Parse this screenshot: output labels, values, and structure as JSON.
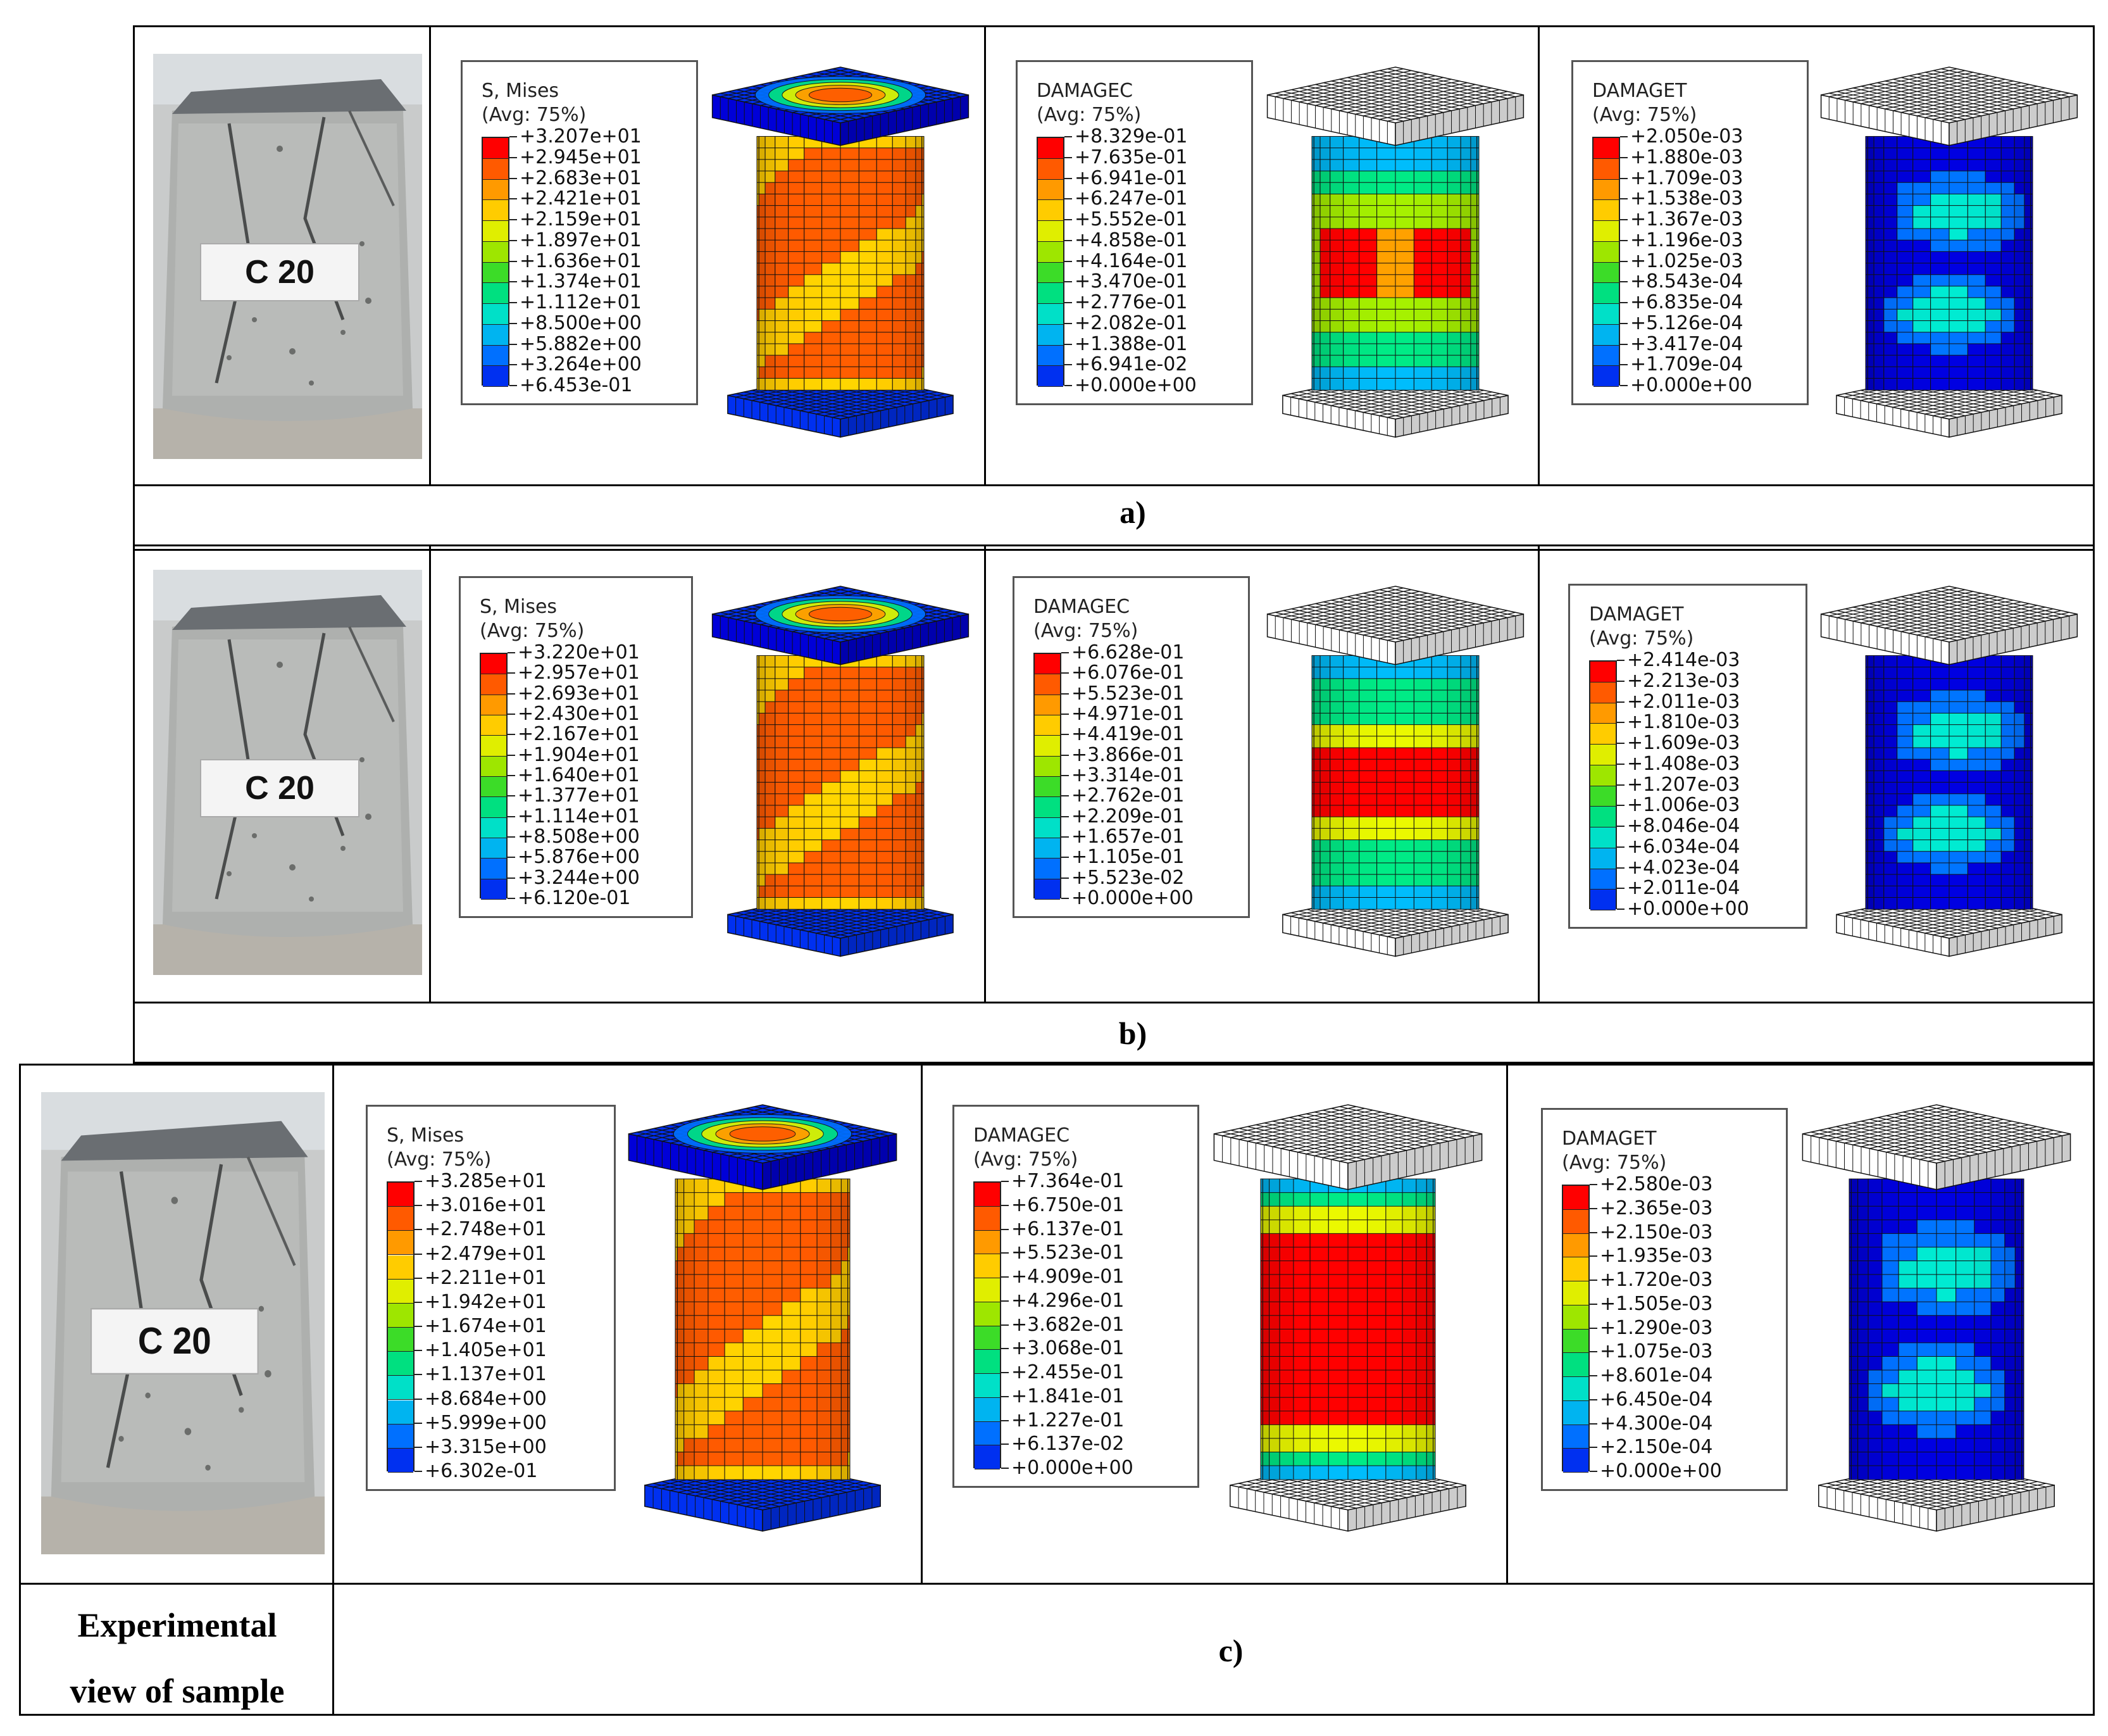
{
  "rows": [
    {
      "id": "a",
      "caption": "a)",
      "specimen_label": "C 20",
      "legends": [
        {
          "title": "S, Mises",
          "avg": "(Avg: 75%)",
          "values": [
            "+3.207e+01",
            "+2.945e+01",
            "+2.683e+01",
            "+2.421e+01",
            "+2.159e+01",
            "+1.897e+01",
            "+1.636e+01",
            "+1.374e+01",
            "+1.112e+01",
            "+8.500e+00",
            "+5.882e+00",
            "+3.264e+00",
            "+6.453e-01"
          ]
        },
        {
          "title": "DAMAGEC",
          "avg": "(Avg: 75%)",
          "values": [
            "+8.329e-01",
            "+7.635e-01",
            "+6.941e-01",
            "+6.247e-01",
            "+5.552e-01",
            "+4.858e-01",
            "+4.164e-01",
            "+3.470e-01",
            "+2.776e-01",
            "+2.082e-01",
            "+1.388e-01",
            "+6.941e-02",
            "+0.000e+00"
          ]
        },
        {
          "title": "DAMAGET",
          "avg": "(Avg: 75%)",
          "values": [
            "+2.050e-03",
            "+1.880e-03",
            "+1.709e-03",
            "+1.538e-03",
            "+1.367e-03",
            "+1.196e-03",
            "+1.025e-03",
            "+8.543e-04",
            "+6.835e-04",
            "+5.126e-04",
            "+3.417e-04",
            "+1.709e-04",
            "+0.000e+00"
          ]
        }
      ]
    },
    {
      "id": "b",
      "caption": "b)",
      "specimen_label": "C 20",
      "legends": [
        {
          "title": "S, Mises",
          "avg": "(Avg: 75%)",
          "values": [
            "+3.220e+01",
            "+2.957e+01",
            "+2.693e+01",
            "+2.430e+01",
            "+2.167e+01",
            "+1.904e+01",
            "+1.640e+01",
            "+1.377e+01",
            "+1.114e+01",
            "+8.508e+00",
            "+5.876e+00",
            "+3.244e+00",
            "+6.120e-01"
          ]
        },
        {
          "title": "DAMAGEC",
          "avg": "(Avg: 75%)",
          "values": [
            "+6.628e-01",
            "+6.076e-01",
            "+5.523e-01",
            "+4.971e-01",
            "+4.419e-01",
            "+3.866e-01",
            "+3.314e-01",
            "+2.762e-01",
            "+2.209e-01",
            "+1.657e-01",
            "+1.105e-01",
            "+5.523e-02",
            "+0.000e+00"
          ]
        },
        {
          "title": "DAMAGET",
          "avg": "(Avg: 75%)",
          "values": [
            "+2.414e-03",
            "+2.213e-03",
            "+2.011e-03",
            "+1.810e-03",
            "+1.609e-03",
            "+1.408e-03",
            "+1.207e-03",
            "+1.006e-03",
            "+8.046e-04",
            "+6.034e-04",
            "+4.023e-04",
            "+2.011e-04",
            "+0.000e+00"
          ]
        }
      ]
    },
    {
      "id": "c",
      "caption": "c)",
      "specimen_label": "C 20",
      "legends": [
        {
          "title": "S, Mises",
          "avg": "(Avg: 75%)",
          "values": [
            "+3.285e+01",
            "+3.016e+01",
            "+2.748e+01",
            "+2.479e+01",
            "+2.211e+01",
            "+1.942e+01",
            "+1.674e+01",
            "+1.405e+01",
            "+1.137e+01",
            "+8.684e+00",
            "+5.999e+00",
            "+3.315e+00",
            "+6.302e-01"
          ]
        },
        {
          "title": "DAMAGEC",
          "avg": "(Avg: 75%)",
          "values": [
            "+7.364e-01",
            "+6.750e-01",
            "+6.137e-01",
            "+5.523e-01",
            "+4.909e-01",
            "+4.296e-01",
            "+3.682e-01",
            "+3.068e-01",
            "+2.455e-01",
            "+1.841e-01",
            "+1.227e-01",
            "+6.137e-02",
            "+0.000e+00"
          ]
        },
        {
          "title": "DAMAGET",
          "avg": "(Avg: 75%)",
          "values": [
            "+2.580e-03",
            "+2.365e-03",
            "+2.150e-03",
            "+1.935e-03",
            "+1.720e-03",
            "+1.505e-03",
            "+1.290e-03",
            "+1.075e-03",
            "+8.601e-04",
            "+6.450e-04",
            "+4.300e-04",
            "+2.150e-04",
            "+0.000e+00"
          ]
        }
      ]
    }
  ],
  "row_header": {
    "line1": "Experimental",
    "line2": "view of sample"
  },
  "colormap": [
    "#ff0000",
    "#ff5a00",
    "#ff9a00",
    "#ffcc00",
    "#e0ee00",
    "#9ee600",
    "#3cdc28",
    "#00e080",
    "#00e0c8",
    "#00b4f0",
    "#0070ff",
    "#0030f0",
    "#0000d8"
  ]
}
